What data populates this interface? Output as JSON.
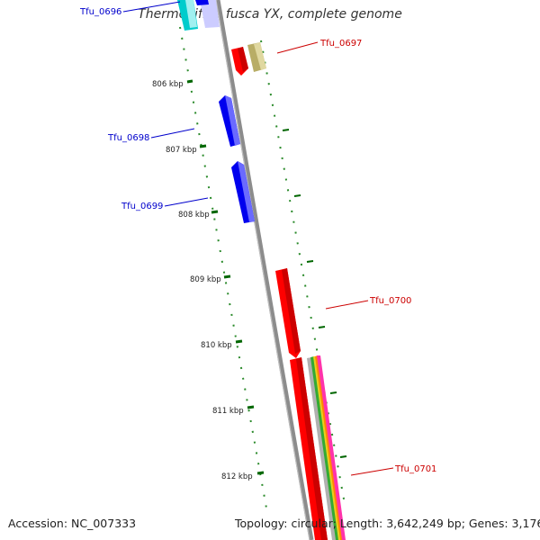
{
  "title": "Thermobifida fusca YX, complete genome",
  "accession": "Accession: NC_007333",
  "topology": "Topology: circular; Length: 3,642,249 bp; Genes: 3,176",
  "ticks": [
    "806 kbp",
    "807 kbp",
    "808 kbp",
    "809 kbp",
    "810 kbp",
    "811 kbp",
    "812 kbp"
  ],
  "genes": [
    {
      "name": "Tfu_0696",
      "strand": "reverse",
      "color": "#0000cc"
    },
    {
      "name": "Tfu_0697",
      "strand": "forward",
      "color": "#cc0000"
    },
    {
      "name": "Tfu_0698",
      "strand": "reverse",
      "color": "#0000cc"
    },
    {
      "name": "Tfu_0699",
      "strand": "reverse",
      "color": "#0000cc"
    },
    {
      "name": "Tfu_0700",
      "strand": "forward",
      "color": "#cc0000"
    },
    {
      "name": "Tfu_0701",
      "strand": "forward",
      "color": "#cc0000"
    }
  ],
  "colors": {
    "forward_gene": "#ff0000",
    "reverse_gene": "#0000ff",
    "backbone": "#808080",
    "tick": "#006600"
  }
}
